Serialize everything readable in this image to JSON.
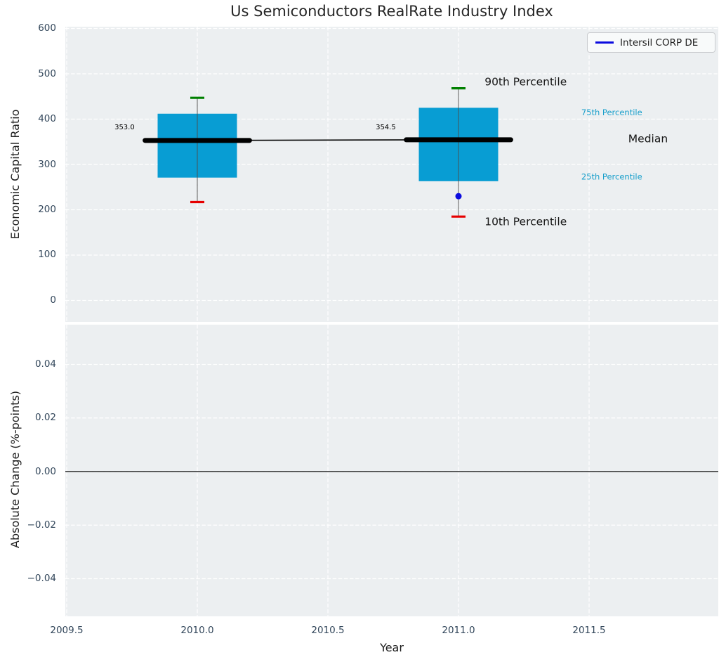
{
  "colors": {
    "figure_bg": "#ffffff",
    "plot_bg": "#eceff1",
    "grid": "#ffffff",
    "box_fill": "#089dd3",
    "whisker": "#4d4d4d",
    "cap_top_green": "#008000",
    "cap_bottom_red": "#e60000",
    "median_black": "#000000",
    "series_blue": "#0b0bdf",
    "tick_label": "#33475b",
    "annotation_cyan": "#199fcb",
    "text_dark": "#161616",
    "zero_line": "#000000"
  },
  "chart_data": {
    "type": "boxplot",
    "title": "Us Semiconductors RealRate Industry Index",
    "xlabel": "Year",
    "legend": {
      "label": "Intersil CORP DE",
      "position": "upper right"
    },
    "xlim": [
      2009.4946,
      2011.9946
    ],
    "xticks": [
      {
        "v": 2009.5,
        "label": "2009.5"
      },
      {
        "v": 2010.0,
        "label": "2010.0"
      },
      {
        "v": 2010.5,
        "label": "2010.5"
      },
      {
        "v": 2011.0,
        "label": "2011.0"
      },
      {
        "v": 2011.5,
        "label": "2011.5"
      }
    ],
    "panels": [
      {
        "name": "economic-capital-ratio",
        "ylabel": "Economic Capital Ratio",
        "ylim": [
          -47.3,
          603.9
        ],
        "yticks": [
          {
            "v": 0,
            "label": "0"
          },
          {
            "v": 100,
            "label": "100"
          },
          {
            "v": 200,
            "label": "200"
          },
          {
            "v": 300,
            "label": "300"
          },
          {
            "v": 400,
            "label": "400"
          },
          {
            "v": 500,
            "label": "500"
          },
          {
            "v": 600,
            "label": "600"
          }
        ],
        "grid": true
      },
      {
        "name": "absolute-change",
        "ylabel": "Absolute Change (%-points)",
        "ylim": [
          -0.05403,
          0.05482
        ],
        "yticks": [
          {
            "v": 0.04,
            "label": "0.04"
          },
          {
            "v": 0.02,
            "label": "0.02"
          },
          {
            "v": 0,
            "label": "0.00"
          },
          {
            "v": -0.02,
            "label": "−0.02"
          },
          {
            "v": -0.04,
            "label": "−0.04"
          }
        ],
        "grid": true,
        "zero_line": true
      }
    ],
    "boxes": [
      {
        "year": 2010,
        "p10": 217,
        "p25": 271,
        "median": 353.0,
        "p75": 412,
        "p90": 447
      },
      {
        "year": 2011,
        "p10": 185,
        "p25": 263,
        "median": 354.5,
        "p75": 425,
        "p90": 468
      }
    ],
    "median_trend": [
      [
        2010,
        353.0
      ],
      [
        2011,
        354.5
      ]
    ],
    "company_points": [
      {
        "year": 2011,
        "value": 230
      }
    ],
    "median_value_labels": [
      {
        "text": "353.0",
        "x": 2009.76,
        "y": 383
      },
      {
        "text": "354.5",
        "x": 2010.76,
        "y": 383
      }
    ],
    "annotations": [
      {
        "text": "90th Percentile",
        "x": 2011.1,
        "y": 483,
        "size": 15.5,
        "color": "dark"
      },
      {
        "text": "75th Percentile",
        "x": 2011.47,
        "y": 415,
        "size": 11.5,
        "color": "cyan"
      },
      {
        "text": "Median",
        "x": 2011.65,
        "y": 357,
        "size": 15.5,
        "color": "dark"
      },
      {
        "text": "25th Percentile",
        "x": 2011.47,
        "y": 273,
        "size": 11.5,
        "color": "cyan"
      },
      {
        "text": "10th Percentile",
        "x": 2011.1,
        "y": 174,
        "size": 15.5,
        "color": "dark"
      }
    ]
  }
}
